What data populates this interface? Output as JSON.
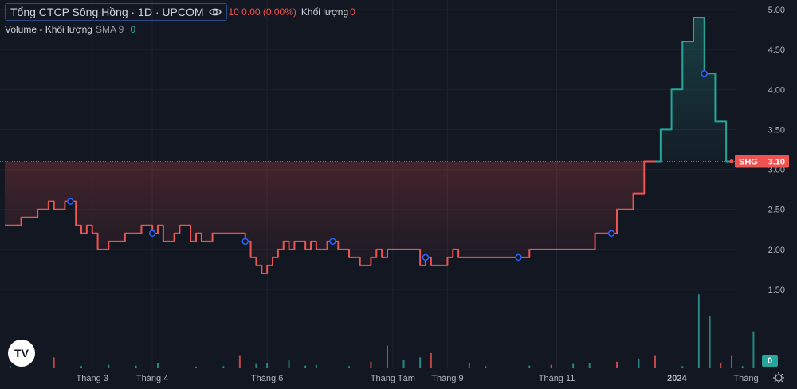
{
  "legend": {
    "symbol_title": "Tổng CTCP Sông Hồng · 1D · UPCOM",
    "ohlc_text": "10 0.00 (0.00%)",
    "volume_label": "Khối lượng",
    "volume_value": "0",
    "indicator_label": "Volume - Khối lượng",
    "sma_label": "SMA 9",
    "sma_value": "0"
  },
  "colors": {
    "background": "#131722",
    "down": "#ef5350",
    "up": "#26a69a",
    "marker": "#2962ff",
    "grid": "#1e222d"
  },
  "icons": {
    "eye": "eye-icon",
    "logo": "tradingview-logo-icon",
    "settings": "gear-icon"
  },
  "logo_text": "TV",
  "time_axis_label": "Tháng",
  "chart_data": {
    "type": "line",
    "symbol": "SHG",
    "last_price": 3.1,
    "last_label": "3.10",
    "yaxis_ticks": [
      "5.00",
      "4.50",
      "4.00",
      "3.50",
      "3.00",
      "2.50",
      "2.00",
      "1.50"
    ],
    "ylim": [
      1.5,
      5.0
    ],
    "xaxis_ticks": [
      {
        "label": "Tháng 3",
        "idx": 16
      },
      {
        "label": "Tháng 4",
        "idx": 27
      },
      {
        "label": "Tháng 6",
        "idx": 48
      },
      {
        "label": "Tháng Tám",
        "idx": 71
      },
      {
        "label": "Tháng 9",
        "idx": 81
      },
      {
        "label": "Tháng 11",
        "idx": 101
      },
      {
        "label": "2024",
        "idx": 123
      }
    ],
    "prices": [
      2.3,
      2.3,
      2.3,
      2.4,
      2.4,
      2.4,
      2.5,
      2.5,
      2.6,
      2.5,
      2.5,
      2.6,
      2.6,
      2.3,
      2.2,
      2.3,
      2.2,
      2.0,
      2.0,
      2.1,
      2.1,
      2.1,
      2.2,
      2.2,
      2.2,
      2.3,
      2.3,
      2.2,
      2.3,
      2.1,
      2.1,
      2.2,
      2.3,
      2.3,
      2.1,
      2.2,
      2.1,
      2.1,
      2.2,
      2.2,
      2.2,
      2.2,
      2.2,
      2.2,
      2.1,
      1.9,
      1.8,
      1.7,
      1.8,
      1.9,
      2.0,
      2.1,
      2.0,
      2.1,
      2.1,
      2.0,
      2.1,
      2.0,
      2.0,
      2.1,
      2.1,
      2.0,
      2.0,
      1.9,
      1.9,
      1.8,
      1.8,
      1.9,
      2.0,
      1.9,
      2.0,
      2.0,
      2.0,
      2.0,
      2.0,
      2.0,
      1.8,
      1.9,
      1.8,
      1.8,
      1.8,
      1.9,
      2.0,
      1.9,
      1.9,
      1.9,
      1.9,
      1.9,
      1.9,
      1.9,
      1.9,
      1.9,
      1.9,
      1.9,
      1.9,
      1.9,
      2.0,
      2.0,
      2.0,
      2.0,
      2.0,
      2.0,
      2.0,
      2.0,
      2.0,
      2.0,
      2.0,
      2.0,
      2.2,
      2.2,
      2.2,
      2.2,
      2.5,
      2.5,
      2.5,
      2.7,
      2.7,
      3.1,
      3.1,
      3.1,
      3.5,
      3.5,
      4.0,
      4.0,
      4.6,
      4.6,
      4.9,
      4.9,
      4.2,
      4.2,
      3.6,
      3.6,
      3.1,
      3.1
    ],
    "markers": [
      12,
      27,
      44,
      60,
      77,
      94,
      111,
      128
    ],
    "volume_max": 2.2,
    "volumes": [
      {
        "i": 1,
        "v": 0.05,
        "d": "up"
      },
      {
        "i": 9,
        "v": 0.25,
        "d": "down"
      },
      {
        "i": 14,
        "v": 0.05,
        "d": "up"
      },
      {
        "i": 19,
        "v": 0.08,
        "d": "up"
      },
      {
        "i": 24,
        "v": 0.06,
        "d": "up"
      },
      {
        "i": 28,
        "v": 0.12,
        "d": "up"
      },
      {
        "i": 35,
        "v": 0.04,
        "d": "down"
      },
      {
        "i": 40,
        "v": 0.05,
        "d": "up"
      },
      {
        "i": 43,
        "v": 0.3,
        "d": "down"
      },
      {
        "i": 46,
        "v": 0.1,
        "d": "up"
      },
      {
        "i": 48,
        "v": 0.12,
        "d": "up"
      },
      {
        "i": 52,
        "v": 0.18,
        "d": "up"
      },
      {
        "i": 55,
        "v": 0.06,
        "d": "up"
      },
      {
        "i": 57,
        "v": 0.08,
        "d": "up"
      },
      {
        "i": 63,
        "v": 0.05,
        "d": "up"
      },
      {
        "i": 67,
        "v": 0.15,
        "d": "down"
      },
      {
        "i": 70,
        "v": 0.52,
        "d": "up"
      },
      {
        "i": 73,
        "v": 0.2,
        "d": "up"
      },
      {
        "i": 76,
        "v": 0.25,
        "d": "up"
      },
      {
        "i": 78,
        "v": 0.35,
        "d": "down"
      },
      {
        "i": 85,
        "v": 0.12,
        "d": "up"
      },
      {
        "i": 88,
        "v": 0.05,
        "d": "up"
      },
      {
        "i": 96,
        "v": 0.06,
        "d": "up"
      },
      {
        "i": 100,
        "v": 0.08,
        "d": "down"
      },
      {
        "i": 104,
        "v": 0.1,
        "d": "up"
      },
      {
        "i": 107,
        "v": 0.12,
        "d": "up"
      },
      {
        "i": 112,
        "v": 0.15,
        "d": "down"
      },
      {
        "i": 116,
        "v": 0.22,
        "d": "up"
      },
      {
        "i": 119,
        "v": 0.3,
        "d": "down"
      },
      {
        "i": 124,
        "v": 0.05,
        "d": "up"
      },
      {
        "i": 127,
        "v": 1.7,
        "d": "up"
      },
      {
        "i": 129,
        "v": 1.2,
        "d": "up"
      },
      {
        "i": 131,
        "v": 0.12,
        "d": "down"
      },
      {
        "i": 133,
        "v": 0.3,
        "d": "up"
      },
      {
        "i": 135,
        "v": 0.05,
        "d": "up"
      },
      {
        "i": 137,
        "v": 0.85,
        "d": "up"
      }
    ]
  }
}
